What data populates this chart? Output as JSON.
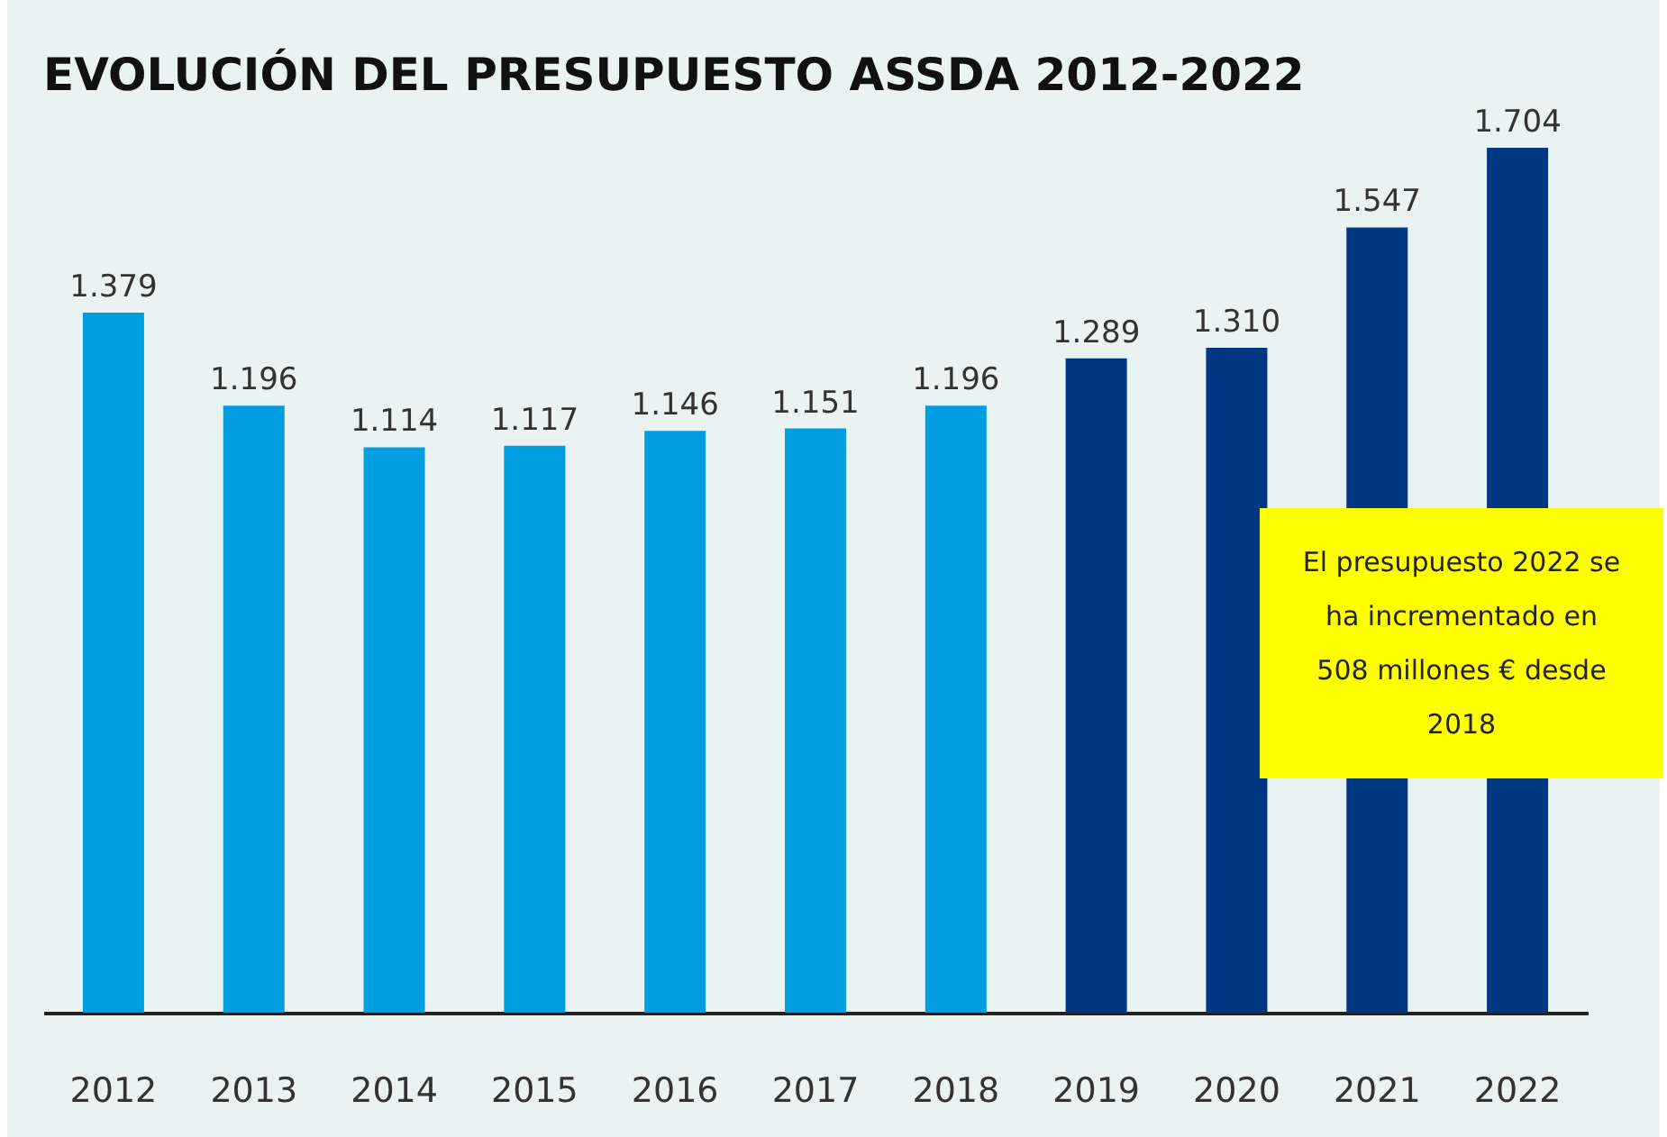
{
  "chart_data": {
    "type": "bar",
    "title": "EVOLUCIÓN DEL PRESUPUESTO ASSDA 2012-2022",
    "categories": [
      "2012",
      "2013",
      "2014",
      "2015",
      "2016",
      "2017",
      "2018",
      "2019",
      "2020",
      "2021",
      "2022"
    ],
    "values": [
      1379,
      1196,
      1114,
      1117,
      1146,
      1151,
      1196,
      1289,
      1310,
      1547,
      1704
    ],
    "value_labels": [
      "1.379",
      "1.196",
      "1.114",
      "1.117",
      "1.146",
      "1.151",
      "1.196",
      "1.289",
      "1.310",
      "1.547",
      "1.704"
    ],
    "colors": [
      "#009ee0",
      "#009ee0",
      "#009ee0",
      "#009ee0",
      "#009ee0",
      "#009ee0",
      "#009ee0",
      "#003781",
      "#003781",
      "#003781",
      "#003781"
    ],
    "annotations": [
      "El presupuesto 2022 se ha incrementado en 508 millones € desde 2018"
    ]
  }
}
